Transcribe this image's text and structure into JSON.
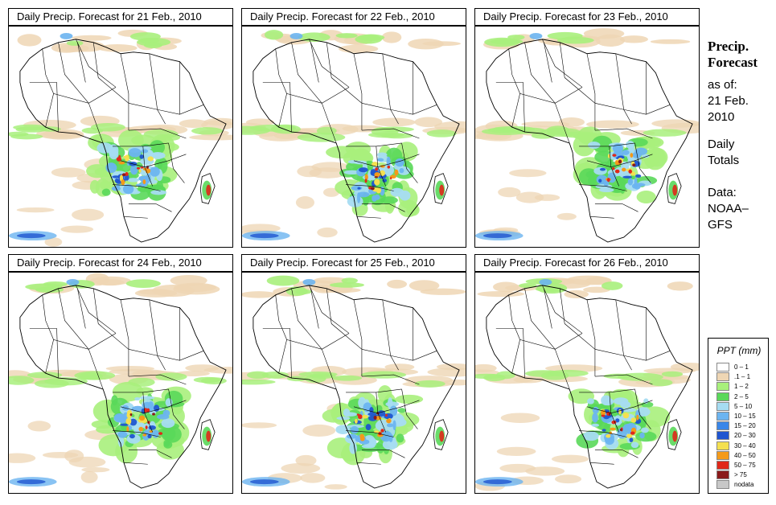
{
  "panels": [
    {
      "title": "Daily Precip. Forecast for  21 Feb., 2010"
    },
    {
      "title": "Daily Precip. Forecast for  22 Feb., 2010"
    },
    {
      "title": "Daily Precip. Forecast for  23 Feb., 2010"
    },
    {
      "title": "Daily Precip. Forecast for  24 Feb., 2010"
    },
    {
      "title": "Daily Precip. Forecast for  25 Feb., 2010"
    },
    {
      "title": "Daily Precip. Forecast for  26 Feb., 2010"
    }
  ],
  "side": {
    "title_line1": "Precip.",
    "title_line2": "Forecast",
    "asof_line1": "as of:",
    "asof_line2": "21 Feb.",
    "asof_line3": "2010",
    "totals_line1": "Daily",
    "totals_line2": "Totals",
    "data_line1": "Data:",
    "data_line2": "NOAA–",
    "data_line3": "GFS"
  },
  "legend": {
    "title": "PPT (mm)",
    "items": [
      {
        "label": "0 – 1",
        "color": "#ffffff"
      },
      {
        "label": ".1 – 1",
        "color": "#eed6b4"
      },
      {
        "label": "1 – 2",
        "color": "#a8f07c"
      },
      {
        "label": "2 – 5",
        "color": "#5ad85a"
      },
      {
        "label": "5 – 10",
        "color": "#a6dcf2"
      },
      {
        "label": "10 – 15",
        "color": "#6cb4f0"
      },
      {
        "label": "15 – 20",
        "color": "#3a86e8"
      },
      {
        "label": "20 – 30",
        "color": "#1f55d0"
      },
      {
        "label": "30 – 40",
        "color": "#f4e050"
      },
      {
        "label": "40 – 50",
        "color": "#f49a1a"
      },
      {
        "label": "50 – 75",
        "color": "#e0281a"
      },
      {
        "label": "> 75",
        "color": "#8a1a1a"
      },
      {
        "label": "nodata",
        "color": "#c8c8c8"
      }
    ]
  }
}
